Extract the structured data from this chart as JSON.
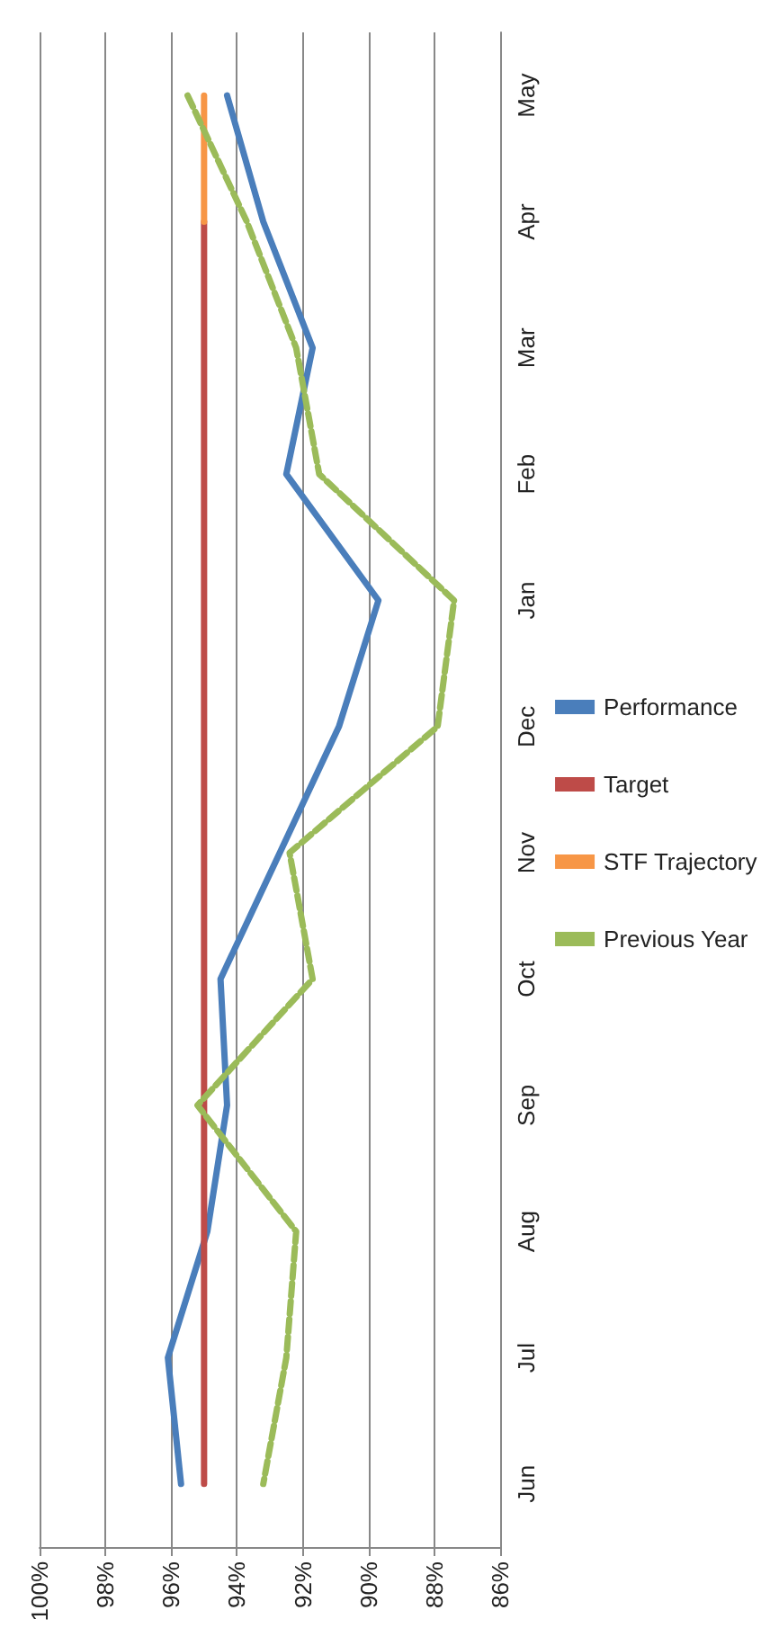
{
  "chart_data": {
    "type": "line",
    "orientation": "horizontal",
    "categories": [
      "May",
      "Apr",
      "Mar",
      "Feb",
      "Jan",
      "Dec",
      "Nov",
      "Oct",
      "Sep",
      "Aug",
      "Jul",
      "Jun"
    ],
    "series": [
      {
        "name": "Performance",
        "color": "#4a7ebb",
        "values": [
          94.3,
          93.2,
          91.7,
          92.5,
          89.7,
          90.9,
          92.7,
          94.5,
          94.3,
          94.9,
          96.1,
          95.7
        ]
      },
      {
        "name": "Target",
        "color": "#be4b48",
        "values": [
          null,
          95,
          95,
          95,
          95,
          95,
          95,
          95,
          95,
          95,
          95,
          95
        ]
      },
      {
        "name": "STF Trajectory",
        "color": "#f79646",
        "values": [
          95,
          95,
          null,
          null,
          null,
          null,
          null,
          null,
          null,
          null,
          null,
          null
        ]
      },
      {
        "name": "Previous Year",
        "color": "#9bbb59",
        "line_style": "dashed",
        "values": [
          95.5,
          93.7,
          92.2,
          91.5,
          87.4,
          87.9,
          92.4,
          91.7,
          95.2,
          92.2,
          92.5,
          93.2
        ]
      }
    ],
    "xlim": [
      100,
      86
    ],
    "xticks": [
      {
        "value": 100,
        "label": "100%"
      },
      {
        "value": 98,
        "label": "98%"
      },
      {
        "value": 96,
        "label": "96%"
      },
      {
        "value": 94,
        "label": "94%"
      },
      {
        "value": 92,
        "label": "92%"
      },
      {
        "value": 90,
        "label": "90%"
      },
      {
        "value": 88,
        "label": "88%"
      },
      {
        "value": 86,
        "label": "86%"
      }
    ],
    "grid": "x",
    "legend": "right",
    "marker": "none"
  }
}
